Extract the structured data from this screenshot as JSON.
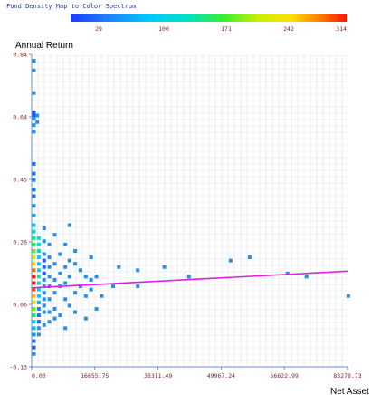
{
  "chart_data": {
    "type": "heatmap",
    "title": "",
    "legend_title": "Fund Density Map to Color Spectrum",
    "legend_ticks": [
      "29",
      "100",
      "171",
      "242",
      "314"
    ],
    "legend_range": [
      29,
      314
    ],
    "xlabel": "Net Asset",
    "ylabel": "Annual Return",
    "x_ticks": [
      "0.00",
      "16655.75",
      "33311.49",
      "49967.24",
      "66622.99",
      "83278.73"
    ],
    "y_ticks": [
      "0.84",
      "0.64",
      "0.45",
      "0.26",
      "0.06",
      "-0.13"
    ],
    "xlim": [
      0,
      83278.73
    ],
    "ylim": [
      -0.13,
      0.84
    ],
    "grid": true,
    "colors": {
      "background": "#ffffff",
      "grid": "#dfe3ea",
      "axis": "#6b8fc7",
      "tick_text": "#8b1a1a",
      "legend_text": "#1f3d8a",
      "trend": "#e020e0",
      "point": "#2a8ee6"
    },
    "trend_line": {
      "x": [
        0,
        83278.73
      ],
      "y": [
        0.115,
        0.167
      ]
    },
    "cells": [
      {
        "x": 0,
        "y": 0.82,
        "d": 29
      },
      {
        "x": 0,
        "y": 0.79,
        "d": 29
      },
      {
        "x": 0,
        "y": 0.72,
        "d": 40
      },
      {
        "x": 0,
        "y": 0.66,
        "d": 45
      },
      {
        "x": 0,
        "y": 0.65,
        "d": 45
      },
      {
        "x": 0,
        "y": 0.64,
        "d": 40
      },
      {
        "x": 0,
        "y": 0.62,
        "d": 35
      },
      {
        "x": 0,
        "y": 0.6,
        "d": 35
      },
      {
        "x": 1000,
        "y": 0.65,
        "d": 29
      },
      {
        "x": 1000,
        "y": 0.63,
        "d": 29
      },
      {
        "x": 0,
        "y": 0.5,
        "d": 60
      },
      {
        "x": 0,
        "y": 0.47,
        "d": 60
      },
      {
        "x": 0,
        "y": 0.45,
        "d": 70
      },
      {
        "x": 0,
        "y": 0.42,
        "d": 60
      },
      {
        "x": 0,
        "y": 0.4,
        "d": 60
      },
      {
        "x": 0,
        "y": 0.37,
        "d": 80
      },
      {
        "x": 0,
        "y": 0.34,
        "d": 90
      },
      {
        "x": 0,
        "y": 0.31,
        "d": 110
      },
      {
        "x": 0,
        "y": 0.29,
        "d": 150
      },
      {
        "x": 0,
        "y": 0.27,
        "d": 170
      },
      {
        "x": 0,
        "y": 0.25,
        "d": 180
      },
      {
        "x": 0,
        "y": 0.23,
        "d": 200
      },
      {
        "x": 0,
        "y": 0.21,
        "d": 230
      },
      {
        "x": 0,
        "y": 0.19,
        "d": 260
      },
      {
        "x": 0,
        "y": 0.17,
        "d": 290
      },
      {
        "x": 0,
        "y": 0.15,
        "d": 314
      },
      {
        "x": 0,
        "y": 0.13,
        "d": 314
      },
      {
        "x": 0,
        "y": 0.11,
        "d": 300
      },
      {
        "x": 0,
        "y": 0.09,
        "d": 270
      },
      {
        "x": 0,
        "y": 0.07,
        "d": 240
      },
      {
        "x": 0,
        "y": 0.05,
        "d": 200
      },
      {
        "x": 0,
        "y": 0.03,
        "d": 170
      },
      {
        "x": 0,
        "y": 0.01,
        "d": 130
      },
      {
        "x": 0,
        "y": -0.01,
        "d": 100
      },
      {
        "x": 0,
        "y": -0.03,
        "d": 80
      },
      {
        "x": 0,
        "y": -0.05,
        "d": 60
      },
      {
        "x": 0,
        "y": -0.07,
        "d": 45
      },
      {
        "x": 0,
        "y": -0.09,
        "d": 35
      },
      {
        "x": 1400,
        "y": 0.27,
        "d": 150
      },
      {
        "x": 1400,
        "y": 0.25,
        "d": 140
      },
      {
        "x": 1400,
        "y": 0.23,
        "d": 130
      },
      {
        "x": 1400,
        "y": 0.21,
        "d": 120
      },
      {
        "x": 1400,
        "y": 0.19,
        "d": 110
      },
      {
        "x": 1400,
        "y": 0.17,
        "d": 120
      },
      {
        "x": 1400,
        "y": 0.15,
        "d": 140
      },
      {
        "x": 1400,
        "y": 0.13,
        "d": 150
      },
      {
        "x": 1400,
        "y": 0.11,
        "d": 130
      },
      {
        "x": 1400,
        "y": 0.09,
        "d": 110
      },
      {
        "x": 1400,
        "y": 0.07,
        "d": 90
      },
      {
        "x": 1400,
        "y": 0.05,
        "d": 70
      },
      {
        "x": 1400,
        "y": 0.03,
        "d": 60
      },
      {
        "x": 1400,
        "y": 0.01,
        "d": 50
      },
      {
        "x": 1400,
        "y": -0.01,
        "d": 40
      },
      {
        "x": 1400,
        "y": -0.03,
        "d": 35
      },
      {
        "x": 2800,
        "y": 0.3,
        "d": 29
      },
      {
        "x": 2800,
        "y": 0.26,
        "d": 29
      },
      {
        "x": 2800,
        "y": 0.22,
        "d": 40
      },
      {
        "x": 2800,
        "y": 0.2,
        "d": 45
      },
      {
        "x": 2800,
        "y": 0.18,
        "d": 50
      },
      {
        "x": 2800,
        "y": 0.16,
        "d": 45
      },
      {
        "x": 2800,
        "y": 0.14,
        "d": 40
      },
      {
        "x": 2800,
        "y": 0.12,
        "d": 40
      },
      {
        "x": 2800,
        "y": 0.1,
        "d": 35
      },
      {
        "x": 2800,
        "y": 0.08,
        "d": 29
      },
      {
        "x": 2800,
        "y": 0.06,
        "d": 29
      },
      {
        "x": 2800,
        "y": 0.04,
        "d": 29
      },
      {
        "x": 2800,
        "y": 0.0,
        "d": 29
      },
      {
        "x": 4200,
        "y": 0.25,
        "d": 29
      },
      {
        "x": 4200,
        "y": 0.21,
        "d": 29
      },
      {
        "x": 4200,
        "y": 0.18,
        "d": 29
      },
      {
        "x": 4200,
        "y": 0.15,
        "d": 29
      },
      {
        "x": 4200,
        "y": 0.12,
        "d": 29
      },
      {
        "x": 4200,
        "y": 0.08,
        "d": 29
      },
      {
        "x": 4200,
        "y": 0.04,
        "d": 29
      },
      {
        "x": 4200,
        "y": 0.01,
        "d": 29
      },
      {
        "x": 5600,
        "y": 0.28,
        "d": 29
      },
      {
        "x": 5600,
        "y": 0.19,
        "d": 29
      },
      {
        "x": 5600,
        "y": 0.14,
        "d": 29
      },
      {
        "x": 5600,
        "y": 0.1,
        "d": 29
      },
      {
        "x": 5600,
        "y": 0.05,
        "d": 29
      },
      {
        "x": 5600,
        "y": 0.02,
        "d": 29
      },
      {
        "x": 7000,
        "y": 0.22,
        "d": 29
      },
      {
        "x": 7000,
        "y": 0.16,
        "d": 29
      },
      {
        "x": 7000,
        "y": 0.12,
        "d": 29
      },
      {
        "x": 7000,
        "y": 0.03,
        "d": 29
      },
      {
        "x": 8400,
        "y": 0.25,
        "d": 29
      },
      {
        "x": 8400,
        "y": 0.18,
        "d": 29
      },
      {
        "x": 8400,
        "y": 0.13,
        "d": 29
      },
      {
        "x": 8400,
        "y": 0.08,
        "d": 29
      },
      {
        "x": 8400,
        "y": -0.01,
        "d": 29
      },
      {
        "x": 9500,
        "y": 0.31,
        "d": 29
      },
      {
        "x": 9500,
        "y": 0.2,
        "d": 29
      },
      {
        "x": 9500,
        "y": 0.15,
        "d": 29
      },
      {
        "x": 9500,
        "y": 0.06,
        "d": 29
      },
      {
        "x": 11000,
        "y": 0.23,
        "d": 29
      },
      {
        "x": 11000,
        "y": 0.19,
        "d": 29
      },
      {
        "x": 11000,
        "y": 0.1,
        "d": 29
      },
      {
        "x": 11000,
        "y": 0.04,
        "d": 29
      },
      {
        "x": 12400,
        "y": 0.17,
        "d": 29
      },
      {
        "x": 12400,
        "y": 0.12,
        "d": 29
      },
      {
        "x": 13800,
        "y": 0.15,
        "d": 29
      },
      {
        "x": 13800,
        "y": 0.09,
        "d": 29
      },
      {
        "x": 13800,
        "y": 0.02,
        "d": 29
      },
      {
        "x": 15200,
        "y": 0.21,
        "d": 29
      },
      {
        "x": 15200,
        "y": 0.14,
        "d": 29
      },
      {
        "x": 15200,
        "y": 0.11,
        "d": 29
      },
      {
        "x": 16600,
        "y": 0.15,
        "d": 29
      },
      {
        "x": 16600,
        "y": 0.05,
        "d": 29
      },
      {
        "x": 18000,
        "y": 0.09,
        "d": 29
      },
      {
        "x": 21000,
        "y": 0.12,
        "d": 29
      },
      {
        "x": 22500,
        "y": 0.18,
        "d": 29
      },
      {
        "x": 27500,
        "y": 0.12,
        "d": 29
      },
      {
        "x": 27500,
        "y": 0.17,
        "d": 29
      },
      {
        "x": 34500,
        "y": 0.18,
        "d": 29
      },
      {
        "x": 41000,
        "y": 0.15,
        "d": 29
      },
      {
        "x": 52000,
        "y": 0.2,
        "d": 29
      },
      {
        "x": 57000,
        "y": 0.21,
        "d": 29
      },
      {
        "x": 67000,
        "y": 0.16,
        "d": 29
      },
      {
        "x": 72000,
        "y": 0.15,
        "d": 29
      },
      {
        "x": 83000,
        "y": 0.09,
        "d": 29
      }
    ]
  }
}
